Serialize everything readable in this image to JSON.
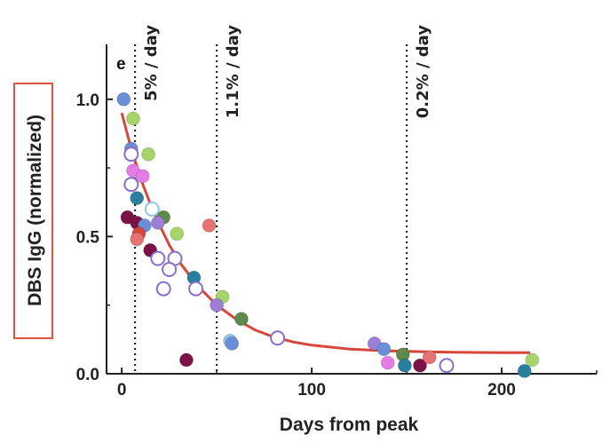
{
  "chart_data": {
    "type": "scatter",
    "panel_label": "e",
    "xlabel": "Days from peak",
    "ylabel": "DBS IgG (normalized)",
    "xlim": [
      -8,
      250
    ],
    "ylim": [
      0,
      1.2
    ],
    "x_ticks": [
      0,
      100,
      200
    ],
    "y_ticks": [
      0.0,
      0.5,
      1.0
    ],
    "y_tick_labels": [
      "0.0",
      "0.5",
      "1.0"
    ],
    "vlines": [
      {
        "x": 7,
        "label": "5% / day"
      },
      {
        "x": 50,
        "label": "1.1% / day"
      },
      {
        "x": 150,
        "label": "0.2% / day"
      }
    ],
    "fit_curve": {
      "color": "#d9463a",
      "x": [
        0,
        5,
        10,
        15,
        20,
        25,
        30,
        40,
        50,
        60,
        70,
        80,
        90,
        100,
        120,
        140,
        160,
        180,
        200,
        215
      ],
      "y": [
        0.95,
        0.82,
        0.71,
        0.62,
        0.54,
        0.47,
        0.41,
        0.32,
        0.25,
        0.2,
        0.16,
        0.134,
        0.116,
        0.104,
        0.09,
        0.083,
        0.08,
        0.078,
        0.077,
        0.077
      ]
    },
    "points": [
      {
        "x": 1,
        "y": 1.0,
        "color": "#6b8fd6",
        "filled": true
      },
      {
        "x": 6,
        "y": 0.93,
        "color": "#a6d46a",
        "filled": true
      },
      {
        "x": 5,
        "y": 0.82,
        "color": "#6b8fd6",
        "filled": true
      },
      {
        "x": 14,
        "y": 0.8,
        "color": "#a6d46a",
        "filled": true
      },
      {
        "x": 5,
        "y": 0.8,
        "color": "#8a6fc8",
        "filled": false
      },
      {
        "x": 6,
        "y": 0.74,
        "color": "#e57ce6",
        "filled": true
      },
      {
        "x": 11,
        "y": 0.72,
        "color": "#e57ce6",
        "filled": true
      },
      {
        "x": 5,
        "y": 0.69,
        "color": "#8a6fc8",
        "filled": false
      },
      {
        "x": 8,
        "y": 0.64,
        "color": "#2b7f9e",
        "filled": true
      },
      {
        "x": 16,
        "y": 0.6,
        "color": "#8ec6ea",
        "filled": false
      },
      {
        "x": 3,
        "y": 0.57,
        "color": "#7b1146",
        "filled": true
      },
      {
        "x": 8,
        "y": 0.55,
        "color": "#7b1146",
        "filled": true
      },
      {
        "x": 12,
        "y": 0.54,
        "color": "#6b8fd6",
        "filled": true
      },
      {
        "x": 22,
        "y": 0.57,
        "color": "#5e8a4a",
        "filled": true
      },
      {
        "x": 19,
        "y": 0.55,
        "color": "#9b7fd6",
        "filled": true
      },
      {
        "x": 9,
        "y": 0.51,
        "color": "#d9463a",
        "filled": true
      },
      {
        "x": 8,
        "y": 0.49,
        "color": "#e57373",
        "filled": true
      },
      {
        "x": 29,
        "y": 0.51,
        "color": "#a6d46a",
        "filled": true
      },
      {
        "x": 46,
        "y": 0.54,
        "color": "#e57373",
        "filled": true
      },
      {
        "x": 15,
        "y": 0.45,
        "color": "#7b1146",
        "filled": true
      },
      {
        "x": 19,
        "y": 0.42,
        "color": "#8a6fc8",
        "filled": false
      },
      {
        "x": 28,
        "y": 0.42,
        "color": "#8a6fc8",
        "filled": false
      },
      {
        "x": 25,
        "y": 0.38,
        "color": "#8a6fc8",
        "filled": false
      },
      {
        "x": 38,
        "y": 0.35,
        "color": "#2b7f9e",
        "filled": true
      },
      {
        "x": 39,
        "y": 0.31,
        "color": "#8a6fc8",
        "filled": false
      },
      {
        "x": 22,
        "y": 0.31,
        "color": "#8a6fc8",
        "filled": false
      },
      {
        "x": 53,
        "y": 0.28,
        "color": "#a6d46a",
        "filled": true
      },
      {
        "x": 50,
        "y": 0.25,
        "color": "#9b7fd6",
        "filled": true
      },
      {
        "x": 63,
        "y": 0.2,
        "color": "#5e8a4a",
        "filled": true
      },
      {
        "x": 57,
        "y": 0.12,
        "color": "#8ec6ea",
        "filled": true
      },
      {
        "x": 58,
        "y": 0.11,
        "color": "#6b8fd6",
        "filled": true
      },
      {
        "x": 82,
        "y": 0.13,
        "color": "#8a6fc8",
        "filled": false
      },
      {
        "x": 34,
        "y": 0.05,
        "color": "#7b1146",
        "filled": true
      },
      {
        "x": 133,
        "y": 0.11,
        "color": "#9b7fd6",
        "filled": true
      },
      {
        "x": 138,
        "y": 0.09,
        "color": "#6b8fd6",
        "filled": true
      },
      {
        "x": 140,
        "y": 0.04,
        "color": "#e57ce6",
        "filled": true
      },
      {
        "x": 148,
        "y": 0.07,
        "color": "#5e8a4a",
        "filled": true
      },
      {
        "x": 149,
        "y": 0.03,
        "color": "#2b7f9e",
        "filled": true
      },
      {
        "x": 157,
        "y": 0.03,
        "color": "#7b1146",
        "filled": true
      },
      {
        "x": 162,
        "y": 0.06,
        "color": "#e57373",
        "filled": true
      },
      {
        "x": 171,
        "y": 0.03,
        "color": "#8a6fc8",
        "filled": false
      },
      {
        "x": 212,
        "y": 0.01,
        "color": "#2b7f9e",
        "filled": true
      },
      {
        "x": 216,
        "y": 0.05,
        "color": "#a6d46a",
        "filled": true
      }
    ],
    "ylabel_box_color": "#e0533f",
    "grid": false
  }
}
